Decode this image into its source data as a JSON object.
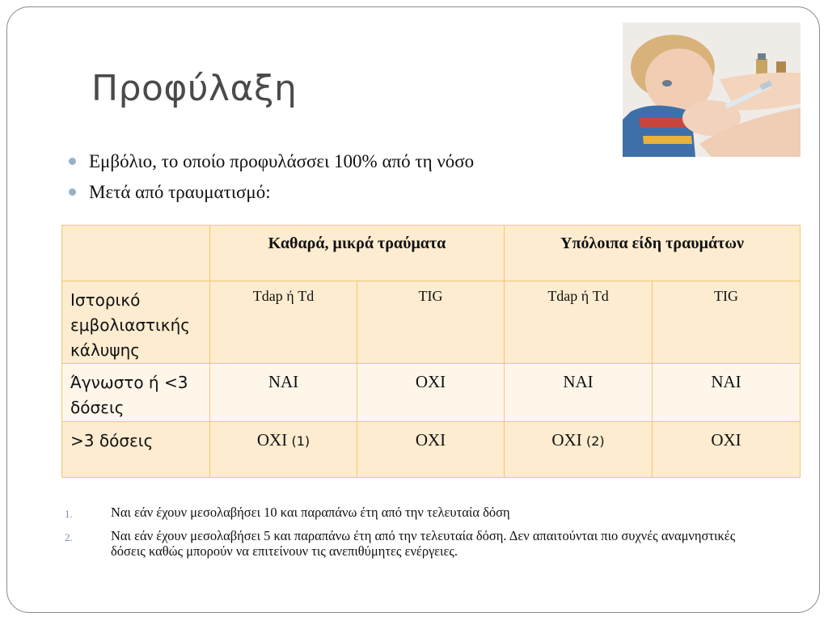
{
  "slide": {
    "title": "Προφύλαξη",
    "bullets": [
      "Εμβόλιο, το οποίο προφυλάσσει 100% από τη νόσο",
      "Μετά από τραυματισμό:"
    ]
  },
  "table": {
    "groups": [
      "Καθαρά, μικρά τραύματα",
      "Υπόλοιπα είδη τραυμάτων"
    ],
    "rows": [
      {
        "label": "Ιστορικό εμβολιαστικής κάλυψης",
        "cells": [
          "Tdap ή Td",
          "TIG",
          "Tdap ή Td",
          "TIG"
        ]
      },
      {
        "label": "Άγνωστο ή <3 δόσεις",
        "cells": [
          "ΝΑΙ",
          "ΟΧΙ",
          "ΝΑΙ",
          "ΝΑΙ"
        ]
      },
      {
        "label": ">3 δόσεις",
        "cells": [
          "ΟΧΙ",
          "ΟΧΙ",
          "ΟΧΙ",
          "ΟΧΙ"
        ],
        "notes": [
          "(1)",
          "",
          "(2)",
          ""
        ]
      }
    ]
  },
  "footnotes": [
    {
      "num": "1.",
      "text": "Ναι εάν έχουν μεσολαβήσει 10 και παραπάνω έτη από την τελευταία δόση"
    },
    {
      "num": "2.",
      "text": "Ναι εάν έχουν μεσολαβήσει 5 και παραπάνω έτη από την τελευταία δόση. Δεν απαιτούνται πιο συχνές αναμνηστικές δόσεις καθώς μπορούν να επιτείνουν τις ανεπιθύμητες ενέργειες."
    }
  ],
  "icons": {
    "bullet": "bullet-dot-icon"
  },
  "colors": {
    "table_border": "#f2c86c",
    "table_fill": "#fdecd0",
    "bullet": "#9ab0c8"
  }
}
